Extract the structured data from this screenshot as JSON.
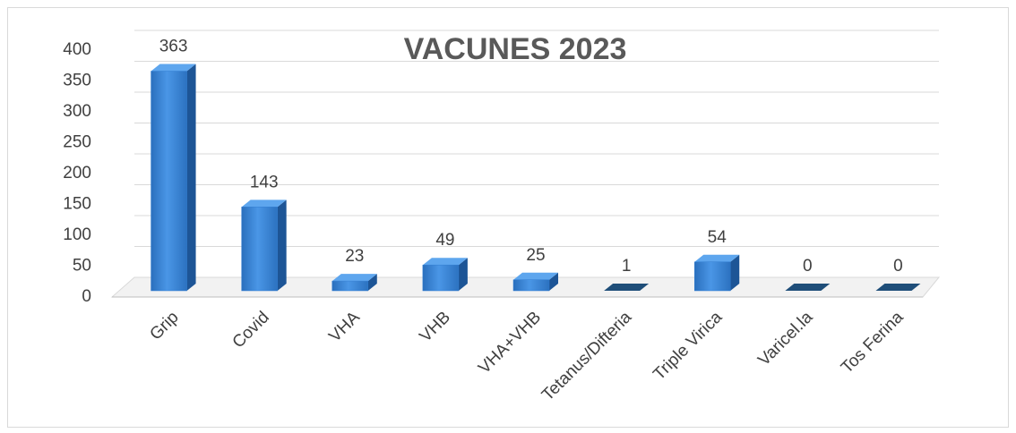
{
  "chart_data": {
    "type": "bar",
    "title": "VACUNES 2023",
    "categories": [
      "Grip",
      "Covid",
      "VHA",
      "VHB",
      "VHA+VHB",
      "Tetanus/Difteria",
      "Triple Virica",
      "Varicel.la",
      "Tos Ferina"
    ],
    "values": [
      363,
      143,
      23,
      49,
      25,
      1,
      54,
      0,
      0
    ],
    "color": "#2e7bd0",
    "ylim": [
      0,
      400
    ],
    "yticks": [
      0,
      50,
      100,
      150,
      200,
      250,
      300,
      350,
      400
    ],
    "grid": true
  }
}
